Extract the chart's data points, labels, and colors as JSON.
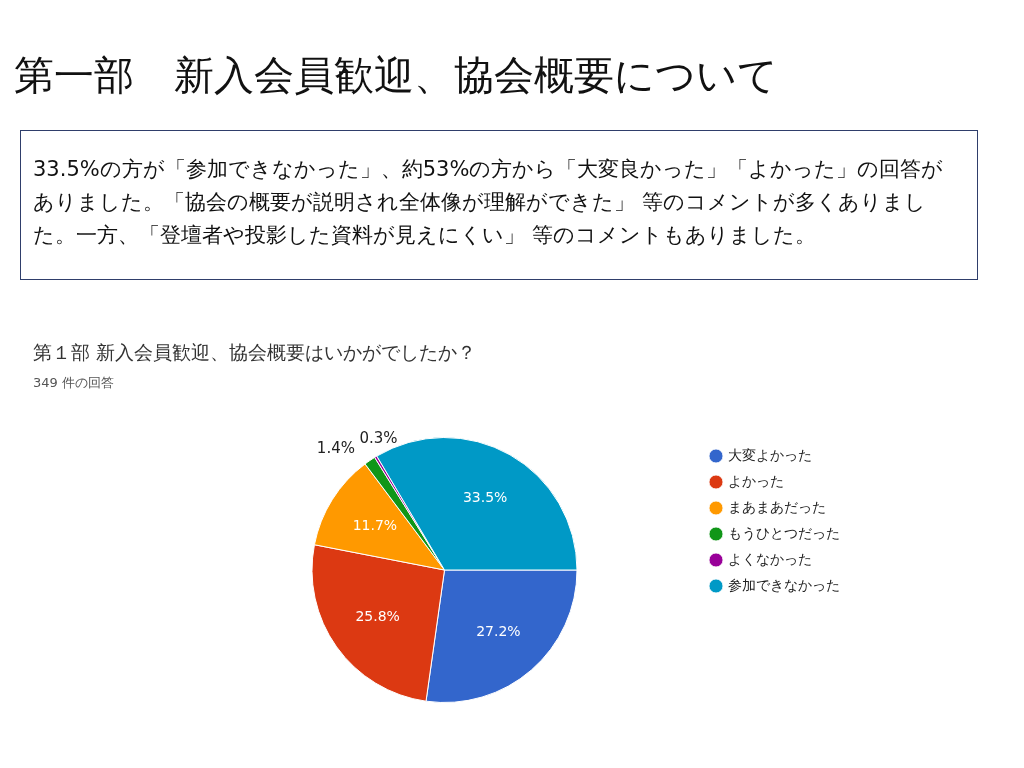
{
  "chart_data": {
    "type": "pie",
    "title": "第１部 新入会員歓迎、協会概要はいかがでしたか？",
    "subtitle": "349 件の回答",
    "annotations": [
      "第一部　新入会員歓迎、協会概要について",
      "33.5%の方が「参加できなかった」、約53%の方から「大変良かった」「よかった」の回答がありました。「協会の概要が説明され全体像が理解ができた」 等のコメントが多くありました。一方、「登壇者や投影した資料が見えにくい」 等のコメントもありました。"
    ],
    "categories": [
      "大変よかった",
      "よかった",
      "まあまあだった",
      "もうひとつだった",
      "よくなかった",
      "参加できなかった"
    ],
    "values": [
      27.2,
      25.8,
      11.7,
      1.4,
      0.3,
      33.5
    ],
    "value_labels": [
      "27.2%",
      "25.8%",
      "11.7%",
      "1.4%",
      "0.3%",
      "33.5%"
    ],
    "colors": [
      "#3366cc",
      "#dc3912",
      "#ff9900",
      "#109618",
      "#990099",
      "#0099c6"
    ],
    "legend": "right"
  }
}
